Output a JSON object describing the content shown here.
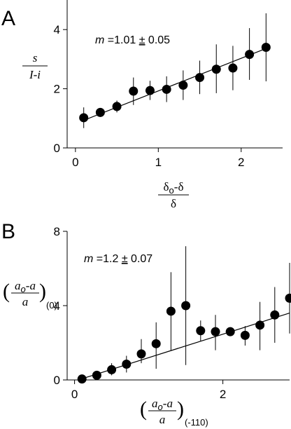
{
  "chart_data": [
    {
      "panel": "A",
      "type": "scatter",
      "annotation": {
        "var": "m",
        "text": " =1.01 ",
        "pm": "±",
        "err": " 0.05"
      },
      "ylabel": {
        "num": "s",
        "den": "I-i"
      },
      "xlabel": {
        "num_a": "δ",
        "num_sub": "o",
        "num_b": "-δ",
        "den": "δ"
      },
      "xlim": [
        -0.1,
        2.5
      ],
      "ylim": [
        0,
        5
      ],
      "xticks": [
        0,
        1,
        2
      ],
      "yticks": [
        0,
        2,
        4
      ],
      "xtick_labels": [
        "0",
        "1",
        "2"
      ],
      "ytick_labels": [
        "0",
        "2",
        "4"
      ],
      "points": [
        {
          "x": 0.1,
          "y": 1.02,
          "lo": 0.67,
          "hi": 1.37
        },
        {
          "x": 0.3,
          "y": 1.2,
          "lo": 1.05,
          "hi": 1.3
        },
        {
          "x": 0.5,
          "y": 1.4,
          "lo": 1.2,
          "hi": 1.6
        },
        {
          "x": 0.7,
          "y": 1.92,
          "lo": 1.45,
          "hi": 2.38
        },
        {
          "x": 0.9,
          "y": 1.94,
          "lo": 1.62,
          "hi": 2.27
        },
        {
          "x": 1.1,
          "y": 1.98,
          "lo": 1.55,
          "hi": 2.42
        },
        {
          "x": 1.3,
          "y": 2.12,
          "lo": 1.62,
          "hi": 2.62
        },
        {
          "x": 1.5,
          "y": 2.38,
          "lo": 1.82,
          "hi": 2.95
        },
        {
          "x": 1.7,
          "y": 2.66,
          "lo": 1.85,
          "hi": 3.5
        },
        {
          "x": 1.9,
          "y": 2.7,
          "lo": 1.95,
          "hi": 3.45
        },
        {
          "x": 2.1,
          "y": 3.16,
          "lo": 2.3,
          "hi": 4.05
        },
        {
          "x": 2.3,
          "y": 3.4,
          "lo": 2.25,
          "hi": 4.55
        }
      ],
      "fit": {
        "x": [
          0.07,
          2.3
        ],
        "y": [
          0.9,
          3.36
        ]
      }
    },
    {
      "panel": "B",
      "type": "scatter",
      "annotation": {
        "var": "m",
        "text": " =1.2 ",
        "pm": "±",
        "err": " 0.07"
      },
      "ylabel": {
        "lp": "(",
        "num_a": "a",
        "num_sub": "o",
        "num_b": "-a",
        "den": "a",
        "rp": ")",
        "sub": "(0)"
      },
      "xlabel": {
        "lp": "(",
        "num_a": "a",
        "num_sub": "o",
        "num_b": "-a",
        "den": "a",
        "rp": ")",
        "sub": "(-110)"
      },
      "xlim": [
        -0.1,
        2.9
      ],
      "ylim": [
        0,
        8
      ],
      "xticks": [
        0,
        2
      ],
      "yticks": [
        0,
        4,
        8
      ],
      "xtick_labels": [
        "0",
        "2"
      ],
      "ytick_labels": [
        "0",
        "4",
        "8"
      ],
      "points": [
        {
          "x": 0.1,
          "y": 0.05,
          "lo": 0.0,
          "hi": 0.1
        },
        {
          "x": 0.3,
          "y": 0.25,
          "lo": 0.15,
          "hi": 0.35
        },
        {
          "x": 0.5,
          "y": 0.55,
          "lo": 0.25,
          "hi": 0.9
        },
        {
          "x": 0.7,
          "y": 0.85,
          "lo": 0.4,
          "hi": 1.3
        },
        {
          "x": 0.9,
          "y": 1.4,
          "lo": 0.9,
          "hi": 2.2
        },
        {
          "x": 1.1,
          "y": 1.95,
          "lo": 0.6,
          "hi": 3.1
        },
        {
          "x": 1.3,
          "y": 3.7,
          "lo": 1.6,
          "hi": 5.8
        },
        {
          "x": 1.5,
          "y": 4.0,
          "lo": 0.8,
          "hi": 7.2
        },
        {
          "x": 1.7,
          "y": 2.65,
          "lo": 2.1,
          "hi": 3.2
        },
        {
          "x": 1.9,
          "y": 2.6,
          "lo": 1.6,
          "hi": 3.5
        },
        {
          "x": 2.1,
          "y": 2.6,
          "lo": 2.45,
          "hi": 2.75
        },
        {
          "x": 2.3,
          "y": 2.4,
          "lo": 1.85,
          "hi": 2.9
        },
        {
          "x": 2.5,
          "y": 2.95,
          "lo": 1.6,
          "hi": 4.2
        },
        {
          "x": 2.7,
          "y": 3.5,
          "lo": 2.0,
          "hi": 5.0
        },
        {
          "x": 2.9,
          "y": 4.4,
          "lo": 2.5,
          "hi": 6.3
        }
      ],
      "fit": {
        "x": [
          0.05,
          2.9
        ],
        "y": [
          0.0,
          3.6
        ]
      }
    }
  ]
}
